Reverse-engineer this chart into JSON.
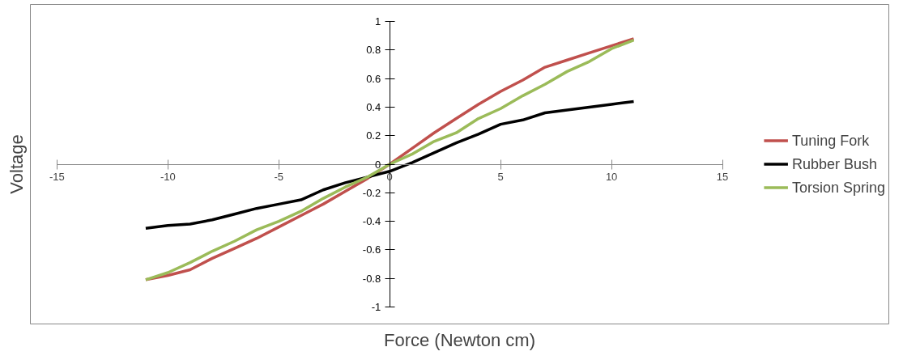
{
  "chart_data": {
    "type": "line",
    "xlabel": "Force (Newton cm)",
    "ylabel": "Voltage",
    "x": [
      -11,
      -10,
      -9,
      -8,
      -7,
      -6,
      -5,
      -4,
      -3,
      -2,
      -1,
      0,
      1,
      2,
      3,
      4,
      5,
      6,
      7,
      8,
      9,
      10,
      11
    ],
    "xlim": [
      -15,
      15
    ],
    "xticks": [
      -15,
      -10,
      -5,
      0,
      5,
      10,
      15
    ],
    "ylim": [
      -1,
      1
    ],
    "yticks": [
      -1,
      -0.8,
      -0.6,
      -0.4,
      -0.2,
      0,
      0.2,
      0.4,
      0.6,
      0.8,
      1
    ],
    "grid": false,
    "legend": "right",
    "marker": "none",
    "line_style": "solid",
    "series": [
      {
        "name": "Tuning Fork",
        "color": "#c0504d",
        "values": [
          -0.81,
          -0.78,
          -0.74,
          -0.66,
          -0.59,
          -0.52,
          -0.44,
          -0.36,
          -0.28,
          -0.19,
          -0.1,
          0,
          0.11,
          0.22,
          0.32,
          0.42,
          0.51,
          0.59,
          0.68,
          0.73,
          0.78,
          0.83,
          0.88
        ]
      },
      {
        "name": "Rubber Bush",
        "color": "#000000",
        "values": [
          -0.45,
          -0.43,
          -0.42,
          -0.39,
          -0.35,
          -0.31,
          -0.28,
          -0.25,
          -0.18,
          -0.13,
          -0.09,
          -0.05,
          0.01,
          0.08,
          0.15,
          0.21,
          0.28,
          0.31,
          0.36,
          0.38,
          0.4,
          0.42,
          0.44
        ]
      },
      {
        "name": "Torsion Spring",
        "color": "#9bbb59",
        "values": [
          -0.81,
          -0.76,
          -0.69,
          -0.61,
          -0.54,
          -0.46,
          -0.4,
          -0.33,
          -0.24,
          -0.16,
          -0.09,
          0,
          0.07,
          0.16,
          0.22,
          0.32,
          0.39,
          0.48,
          0.56,
          0.65,
          0.72,
          0.81,
          0.87
        ]
      }
    ]
  }
}
